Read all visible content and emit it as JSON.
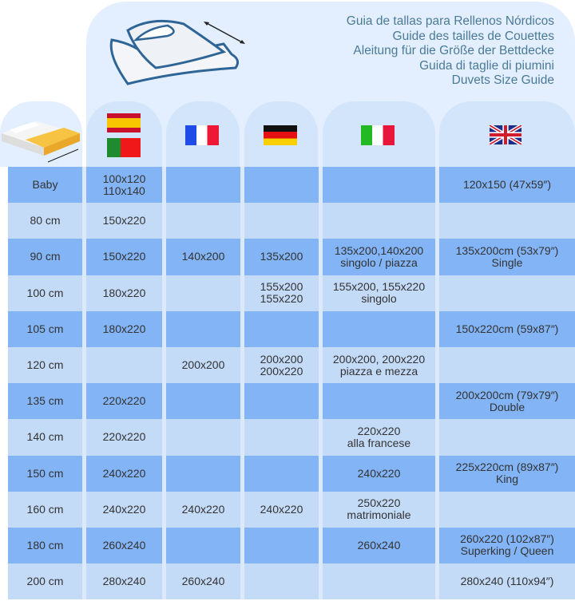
{
  "titles": [
    "Guia de tallas para Rellenos Nórdicos",
    "Guide des tailles de Couettes",
    "Aleitung für die Größe der Bettdecke",
    "Guida di taglie di piumini",
    "Duvets Size Guide"
  ],
  "flags": [
    "spain",
    "portugal",
    "france",
    "germany",
    "italy",
    "united-kingdom"
  ],
  "colors": {
    "dark_row": "#82b4f6",
    "light_row": "#c4dbf8",
    "header": "#e3efff",
    "title": "#4a7a96"
  },
  "rows": [
    {
      "size": "Baby",
      "es": [
        "100x120",
        "110x140"
      ],
      "fr": [],
      "de": [],
      "it": [],
      "uk": [
        "120x150 (47x59″)"
      ]
    },
    {
      "size": "80 cm",
      "es": [
        "150x220"
      ],
      "fr": [],
      "de": [],
      "it": [],
      "uk": []
    },
    {
      "size": "90 cm",
      "es": [
        "150x220"
      ],
      "fr": [
        "140x200"
      ],
      "de": [
        "135x200"
      ],
      "it": [
        "135x200,140x200",
        "singolo / piazza"
      ],
      "uk": [
        "135x200cm (53x79″)",
        "Single"
      ]
    },
    {
      "size": "100 cm",
      "es": [
        "180x220"
      ],
      "fr": [],
      "de": [
        "155x200",
        "155x220"
      ],
      "it": [
        "155x200, 155x220",
        "singolo"
      ],
      "uk": []
    },
    {
      "size": "105 cm",
      "es": [
        "180x220"
      ],
      "fr": [],
      "de": [],
      "it": [],
      "uk": [
        "150x220cm (59x87″)"
      ]
    },
    {
      "size": "120 cm",
      "es": [],
      "fr": [
        "200x200"
      ],
      "de": [
        "200x200",
        "200x220"
      ],
      "it": [
        "200x200, 200x220",
        "piazza e mezza"
      ],
      "uk": []
    },
    {
      "size": "135 cm",
      "es": [
        "220x220"
      ],
      "fr": [],
      "de": [],
      "it": [],
      "uk": [
        "200x200cm (79x79″)",
        "Double"
      ]
    },
    {
      "size": "140 cm",
      "es": [
        "220x220"
      ],
      "fr": [],
      "de": [],
      "it": [
        "220x220",
        "alla francese"
      ],
      "uk": []
    },
    {
      "size": "150 cm",
      "es": [
        "240x220"
      ],
      "fr": [],
      "de": [],
      "it": [
        "240x220"
      ],
      "uk": [
        "225x220cm (89x87″)",
        "King"
      ]
    },
    {
      "size": "160 cm",
      "es": [
        "240x220"
      ],
      "fr": [
        "240x220"
      ],
      "de": [
        "240x220"
      ],
      "it": [
        "250x220",
        "matrimoniale"
      ],
      "uk": []
    },
    {
      "size": "180 cm",
      "es": [
        "260x240"
      ],
      "fr": [],
      "de": [],
      "it": [
        "260x240"
      ],
      "uk": [
        "260x220 (102x87″)",
        "Superking / Queen"
      ]
    },
    {
      "size": "200 cm",
      "es": [
        "280x240"
      ],
      "fr": [
        "260x240"
      ],
      "de": [],
      "it": [],
      "uk": [
        "280x240 (110x94″)"
      ]
    }
  ]
}
